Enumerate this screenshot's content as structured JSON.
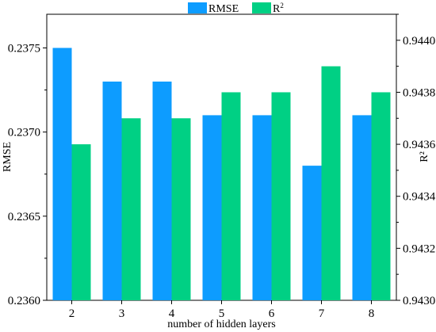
{
  "chart_data": {
    "type": "bar",
    "xlabel": "number of hidden layers",
    "ylabel_left": "RMSE",
    "ylabel_right": "R²",
    "categories": [
      "2",
      "3",
      "4",
      "5",
      "6",
      "7",
      "8"
    ],
    "series": [
      {
        "name": "RMSE",
        "label_main": "RMSE",
        "label_sup": "",
        "axis": "left",
        "color": "#0D9CFF",
        "values": [
          0.2375,
          0.2373,
          0.2373,
          0.2371,
          0.2371,
          0.2368,
          0.2371
        ]
      },
      {
        "name": "R²",
        "label_main": "R",
        "label_sup": "2",
        "axis": "right",
        "color": "#00D084",
        "values": [
          0.9436,
          0.9437,
          0.9437,
          0.9438,
          0.9438,
          0.9439,
          0.9438
        ]
      }
    ],
    "ylim_left": [
      0.236,
      0.2377
    ],
    "yticks_left": [
      "0.2360",
      "0.2365",
      "0.2370",
      "0.2375"
    ],
    "yticks_left_values": [
      0.236,
      0.2365,
      0.237,
      0.2375
    ],
    "ylim_right": [
      0.943,
      0.9441
    ],
    "yticks_right": [
      "0.9430",
      "0.9432",
      "0.9434",
      "0.9436",
      "0.9438",
      "0.9440"
    ],
    "yticks_right_values": [
      0.943,
      0.9432,
      0.9434,
      0.9436,
      0.9438,
      0.944
    ],
    "grid": false,
    "legend_position": "top-center"
  }
}
